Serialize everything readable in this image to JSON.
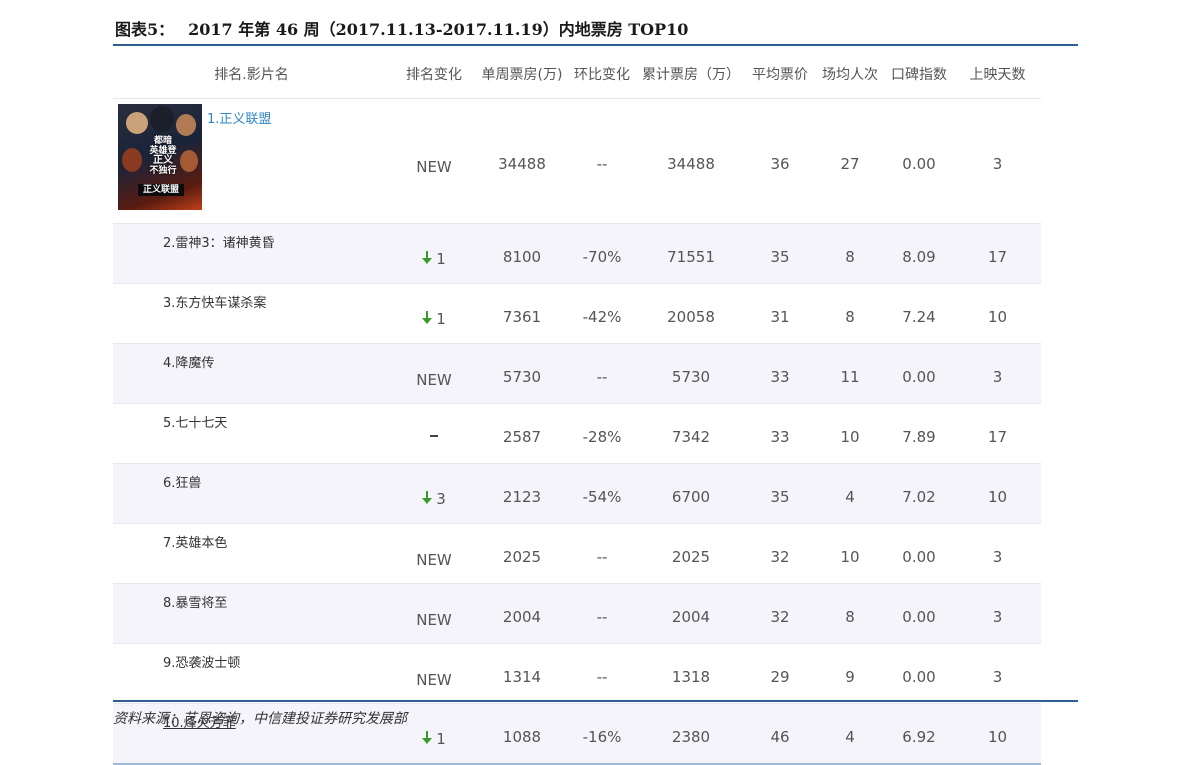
{
  "caption": {
    "label": "图表5：",
    "title": "2017 年第 46 周（2017.11.13-2017.11.19）内地票房 TOP10"
  },
  "table": {
    "headers": [
      "排名.影片名",
      "排名变化",
      "单周票房(万)",
      "环比变化",
      "累计票房（万）",
      "平均票价",
      "场均人次",
      "口碑指数",
      "上映天数"
    ],
    "rows": [
      {
        "name": "1.正义联盟",
        "change": "NEW",
        "change_icon": "none",
        "weekly": "34488",
        "wow": "--",
        "total": "34488",
        "avg_price": "36",
        "per_show": "27",
        "score": "0.00",
        "days": "3"
      },
      {
        "name": "2.雷神3：诸神黄昏",
        "change": "1",
        "change_icon": "down-arrow-icon",
        "weekly": "8100",
        "wow": "-70%",
        "total": "71551",
        "avg_price": "35",
        "per_show": "8",
        "score": "8.09",
        "days": "17"
      },
      {
        "name": "3.东方快车谋杀案",
        "change": "1",
        "change_icon": "down-arrow-icon",
        "weekly": "7361",
        "wow": "-42%",
        "total": "20058",
        "avg_price": "31",
        "per_show": "8",
        "score": "7.24",
        "days": "10"
      },
      {
        "name": "4.降魔传",
        "change": "NEW",
        "change_icon": "none",
        "weekly": "5730",
        "wow": "--",
        "total": "5730",
        "avg_price": "33",
        "per_show": "11",
        "score": "0.00",
        "days": "3"
      },
      {
        "name": "5.七十七天",
        "change": "",
        "change_icon": "dash-icon",
        "weekly": "2587",
        "wow": "-28%",
        "total": "7342",
        "avg_price": "33",
        "per_show": "10",
        "score": "7.89",
        "days": "17"
      },
      {
        "name": "6.狂兽",
        "change": "3",
        "change_icon": "down-arrow-icon",
        "weekly": "2123",
        "wow": "-54%",
        "total": "6700",
        "avg_price": "35",
        "per_show": "4",
        "score": "7.02",
        "days": "10"
      },
      {
        "name": "7.英雄本色",
        "change": "NEW",
        "change_icon": "none",
        "weekly": "2025",
        "wow": "--",
        "total": "2025",
        "avg_price": "32",
        "per_show": "10",
        "score": "0.00",
        "days": "3"
      },
      {
        "name": "8.暴雪将至",
        "change": "NEW",
        "change_icon": "none",
        "weekly": "2004",
        "wow": "--",
        "total": "2004",
        "avg_price": "32",
        "per_show": "8",
        "score": "0.00",
        "days": "3"
      },
      {
        "name": "9.恐袭波士顿",
        "change": "NEW",
        "change_icon": "none",
        "weekly": "1314",
        "wow": "--",
        "total": "1318",
        "avg_price": "29",
        "per_show": "9",
        "score": "0.00",
        "days": "3"
      },
      {
        "name": "10.烽火芳菲",
        "change": "1",
        "change_icon": "down-arrow-icon",
        "weekly": "1088",
        "wow": "-16%",
        "total": "2380",
        "avg_price": "46",
        "per_show": "4",
        "score": "6.92",
        "days": "10"
      }
    ]
  },
  "poster": {
    "text_top": "都暗",
    "text_mid": "英雄登",
    "text_main": "正义",
    "text_sub": "不独行",
    "banner": "正义联盟"
  },
  "source": "资料来源：艺恩咨询，中信建投证券研究发展部",
  "colors": {
    "rule": "#2e5f8f",
    "link": "#2f86c9",
    "arrow": "#3a9a2c",
    "alt_row": "#f4f4fa"
  }
}
